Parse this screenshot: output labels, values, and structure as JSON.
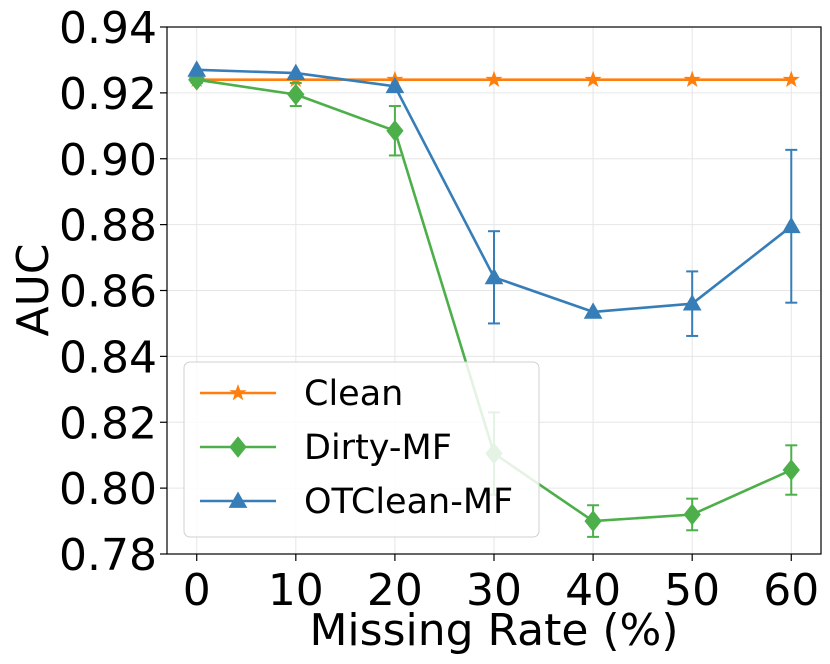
{
  "chart_data": {
    "type": "line",
    "title": "",
    "xlabel": "Missing Rate (%)",
    "ylabel": "AUC",
    "x": [
      0,
      10,
      20,
      30,
      40,
      50,
      60
    ],
    "xlim": [
      -3,
      63
    ],
    "ylim": [
      0.78,
      0.94
    ],
    "xticks": [
      "0",
      "10",
      "20",
      "30",
      "40",
      "50",
      "60"
    ],
    "yticks": [
      "0.78",
      "0.80",
      "0.82",
      "0.84",
      "0.86",
      "0.88",
      "0.90",
      "0.92",
      "0.94"
    ],
    "grid": true,
    "legend_position": "lower-left",
    "series": [
      {
        "name": "Clean",
        "color": "#ff7f0e",
        "marker": "star",
        "values": [
          0.924,
          0.924,
          0.924,
          0.924,
          0.924,
          0.924,
          0.924
        ],
        "errors": [
          0,
          0,
          0,
          0,
          0,
          0,
          0
        ]
      },
      {
        "name": "Dirty-MF",
        "color": "#4daf4a",
        "marker": "diamond",
        "values": [
          0.924,
          0.9195,
          0.9085,
          0.8105,
          0.79,
          0.792,
          0.8055
        ],
        "errors": [
          0.001,
          0.0035,
          0.0075,
          0.0125,
          0.0048,
          0.0048,
          0.0075
        ]
      },
      {
        "name": "OTClean-MF",
        "color": "#377eb8",
        "marker": "triangle",
        "values": [
          0.927,
          0.926,
          0.922,
          0.864,
          0.8535,
          0.856,
          0.8795
        ],
        "errors": [
          0,
          0,
          0,
          0.014,
          0,
          0.0098,
          0.0232
        ]
      }
    ]
  }
}
